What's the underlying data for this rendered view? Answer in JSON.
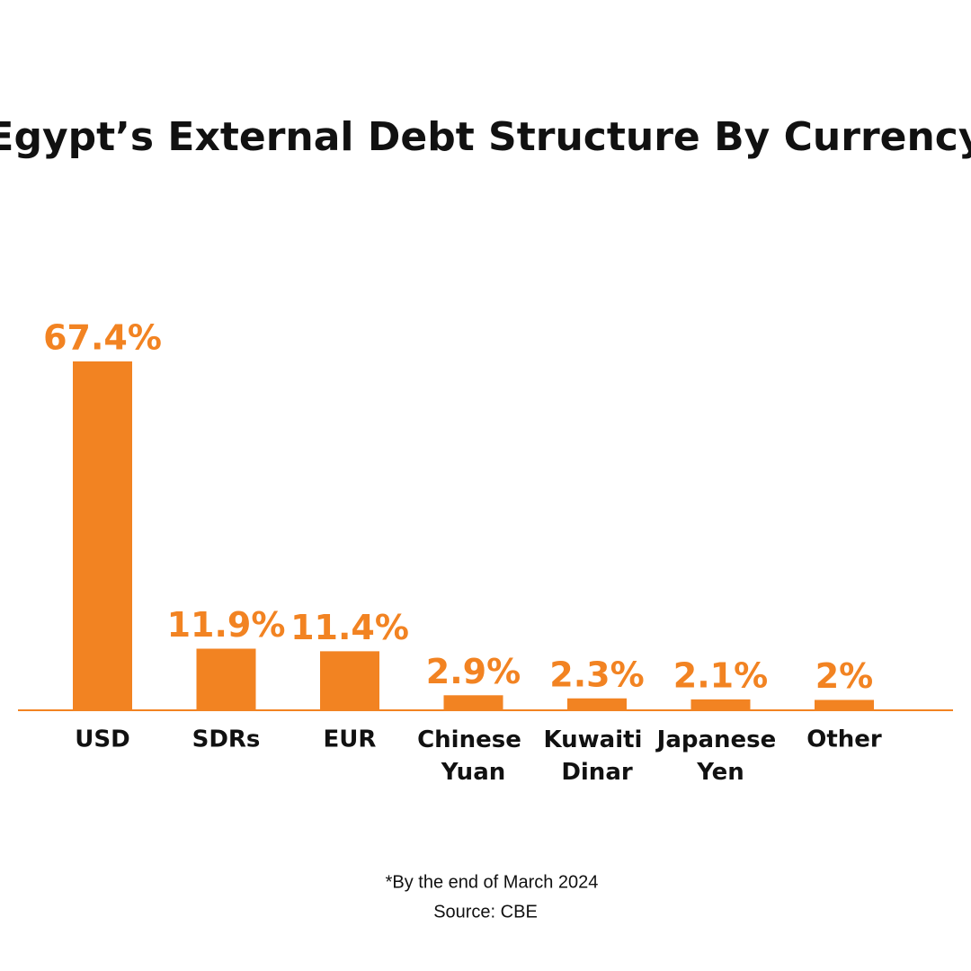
{
  "chart_data": {
    "type": "bar",
    "title": "Egypt’s External Debt Structure By Currency",
    "categories": [
      "USD",
      "SDRs",
      "EUR",
      "Chinese Yuan",
      "Kuwaiti Dinar",
      "Japanese Yen",
      "Other"
    ],
    "values": [
      67.4,
      11.9,
      11.4,
      2.9,
      2.3,
      2.1,
      2
    ],
    "value_labels": [
      "67.4%",
      "11.9%",
      "11.4%",
      "2.9%",
      "2.3%",
      "2.1%",
      "2%"
    ],
    "color": "#f28322",
    "notes": [
      "*By the end of March 2024",
      "Source: CBE"
    ]
  }
}
